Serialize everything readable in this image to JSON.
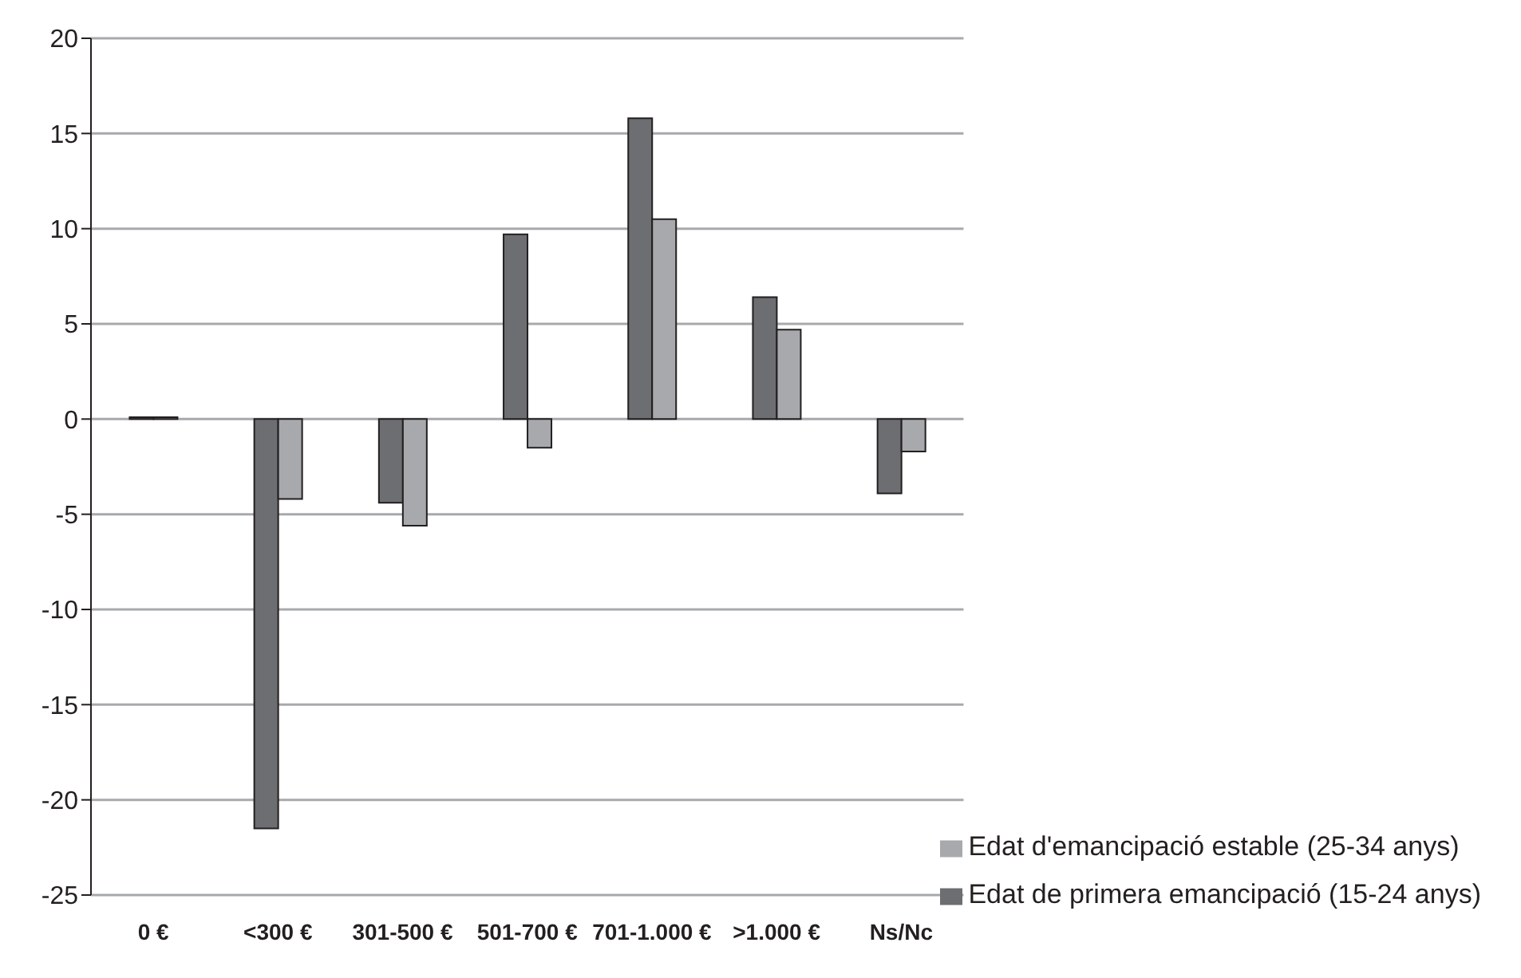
{
  "chart_data": {
    "type": "bar",
    "categories": [
      "0 €",
      "<300 €",
      "301-500 €",
      "501-700 €",
      "701-1.000 €",
      ">1.000 €",
      "Ns/Nc"
    ],
    "series": [
      {
        "name": "Edat de primera emancipació (15-24 anys)",
        "color": "#6d6e71",
        "values": [
          0.1,
          -21.5,
          -4.4,
          9.7,
          15.8,
          6.4,
          -3.9
        ]
      },
      {
        "name": "Edat d'emancipació estable (25-34 anys)",
        "color": "#a7a9ac",
        "values": [
          0.1,
          -4.2,
          -5.6,
          -1.5,
          10.5,
          4.7,
          -1.7
        ]
      }
    ],
    "ylim": [
      -25,
      20
    ],
    "yticks": [
      -25,
      -20,
      -15,
      -10,
      -5,
      0,
      5,
      10,
      15,
      20
    ],
    "grid": "y",
    "legend": "bottom right"
  }
}
